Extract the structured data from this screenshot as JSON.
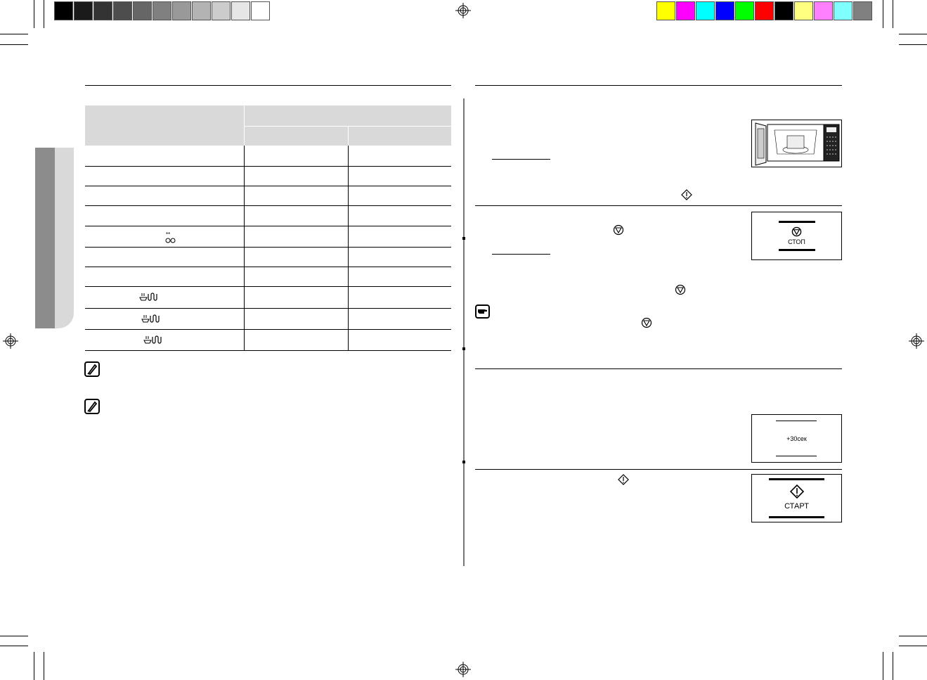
{
  "color_bars": {
    "grayscale": [
      "#000000",
      "#1a1a1a",
      "#333333",
      "#4d4d4d",
      "#666666",
      "#808080",
      "#999999",
      "#b3b3b3",
      "#cccccc",
      "#e6e6e6",
      "#ffffff"
    ],
    "process": [
      "#ffff00",
      "#ff00ff",
      "#00ffff",
      "#0000ff",
      "#00ff00",
      "#ff0000",
      "#000000",
      "#ffff80",
      "#ff80ff",
      "#80ffff",
      "#808080"
    ]
  },
  "table": {
    "header_color": "#d9d9d9",
    "row_icons": [
      "",
      "",
      "",
      "",
      "defrost-icon",
      "",
      "",
      "combi-grill-icon",
      "combi-grill-icon",
      "combi-grill-icon"
    ]
  },
  "side_tab": {
    "dark": "#8c8c8c",
    "light": "#d9d9d9"
  },
  "panels": {
    "stop_label": "СТОП",
    "plus30_label": "+30сек",
    "start_label": "СТАРТ"
  }
}
